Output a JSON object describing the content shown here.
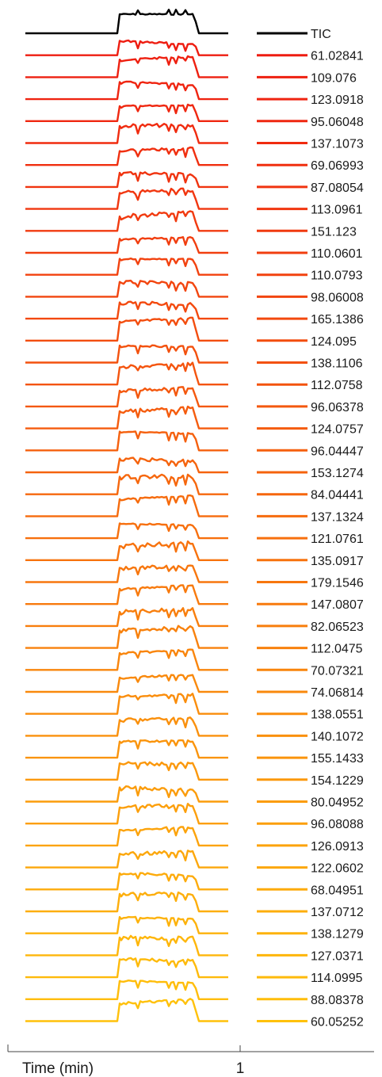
{
  "chart_data": {
    "type": "line",
    "xlabel": "Time (min)",
    "x_ticks": [
      "1"
    ],
    "series_colors": {
      "tic": "#000000",
      "first": "#ee1c10",
      "last": "#ffc10a"
    },
    "series": [
      {
        "name": "TIC"
      },
      {
        "name": "61.02841"
      },
      {
        "name": "109.076"
      },
      {
        "name": "123.0918"
      },
      {
        "name": "95.06048"
      },
      {
        "name": "137.1073"
      },
      {
        "name": "69.06993"
      },
      {
        "name": "87.08054"
      },
      {
        "name": "113.0961"
      },
      {
        "name": "151.123"
      },
      {
        "name": "110.0601"
      },
      {
        "name": "110.0793"
      },
      {
        "name": "98.06008"
      },
      {
        "name": "165.1386"
      },
      {
        "name": "124.095"
      },
      {
        "name": "138.1106"
      },
      {
        "name": "112.0758"
      },
      {
        "name": "96.06378"
      },
      {
        "name": "124.0757"
      },
      {
        "name": "96.04447"
      },
      {
        "name": "153.1274"
      },
      {
        "name": "84.04441"
      },
      {
        "name": "137.1324"
      },
      {
        "name": "121.0761"
      },
      {
        "name": "135.0917"
      },
      {
        "name": "179.1546"
      },
      {
        "name": "147.0807"
      },
      {
        "name": "82.06523"
      },
      {
        "name": "112.0475"
      },
      {
        "name": "70.07321"
      },
      {
        "name": "74.06814"
      },
      {
        "name": "138.0551"
      },
      {
        "name": "140.1072"
      },
      {
        "name": "155.1433"
      },
      {
        "name": "154.1229"
      },
      {
        "name": "80.04952"
      },
      {
        "name": "96.08088"
      },
      {
        "name": "126.0913"
      },
      {
        "name": "122.0602"
      },
      {
        "name": "68.04951"
      },
      {
        "name": "137.0712"
      },
      {
        "name": "138.1279"
      },
      {
        "name": "127.0371"
      },
      {
        "name": "114.0995"
      },
      {
        "name": "88.08378"
      },
      {
        "name": "60.05252"
      }
    ]
  }
}
